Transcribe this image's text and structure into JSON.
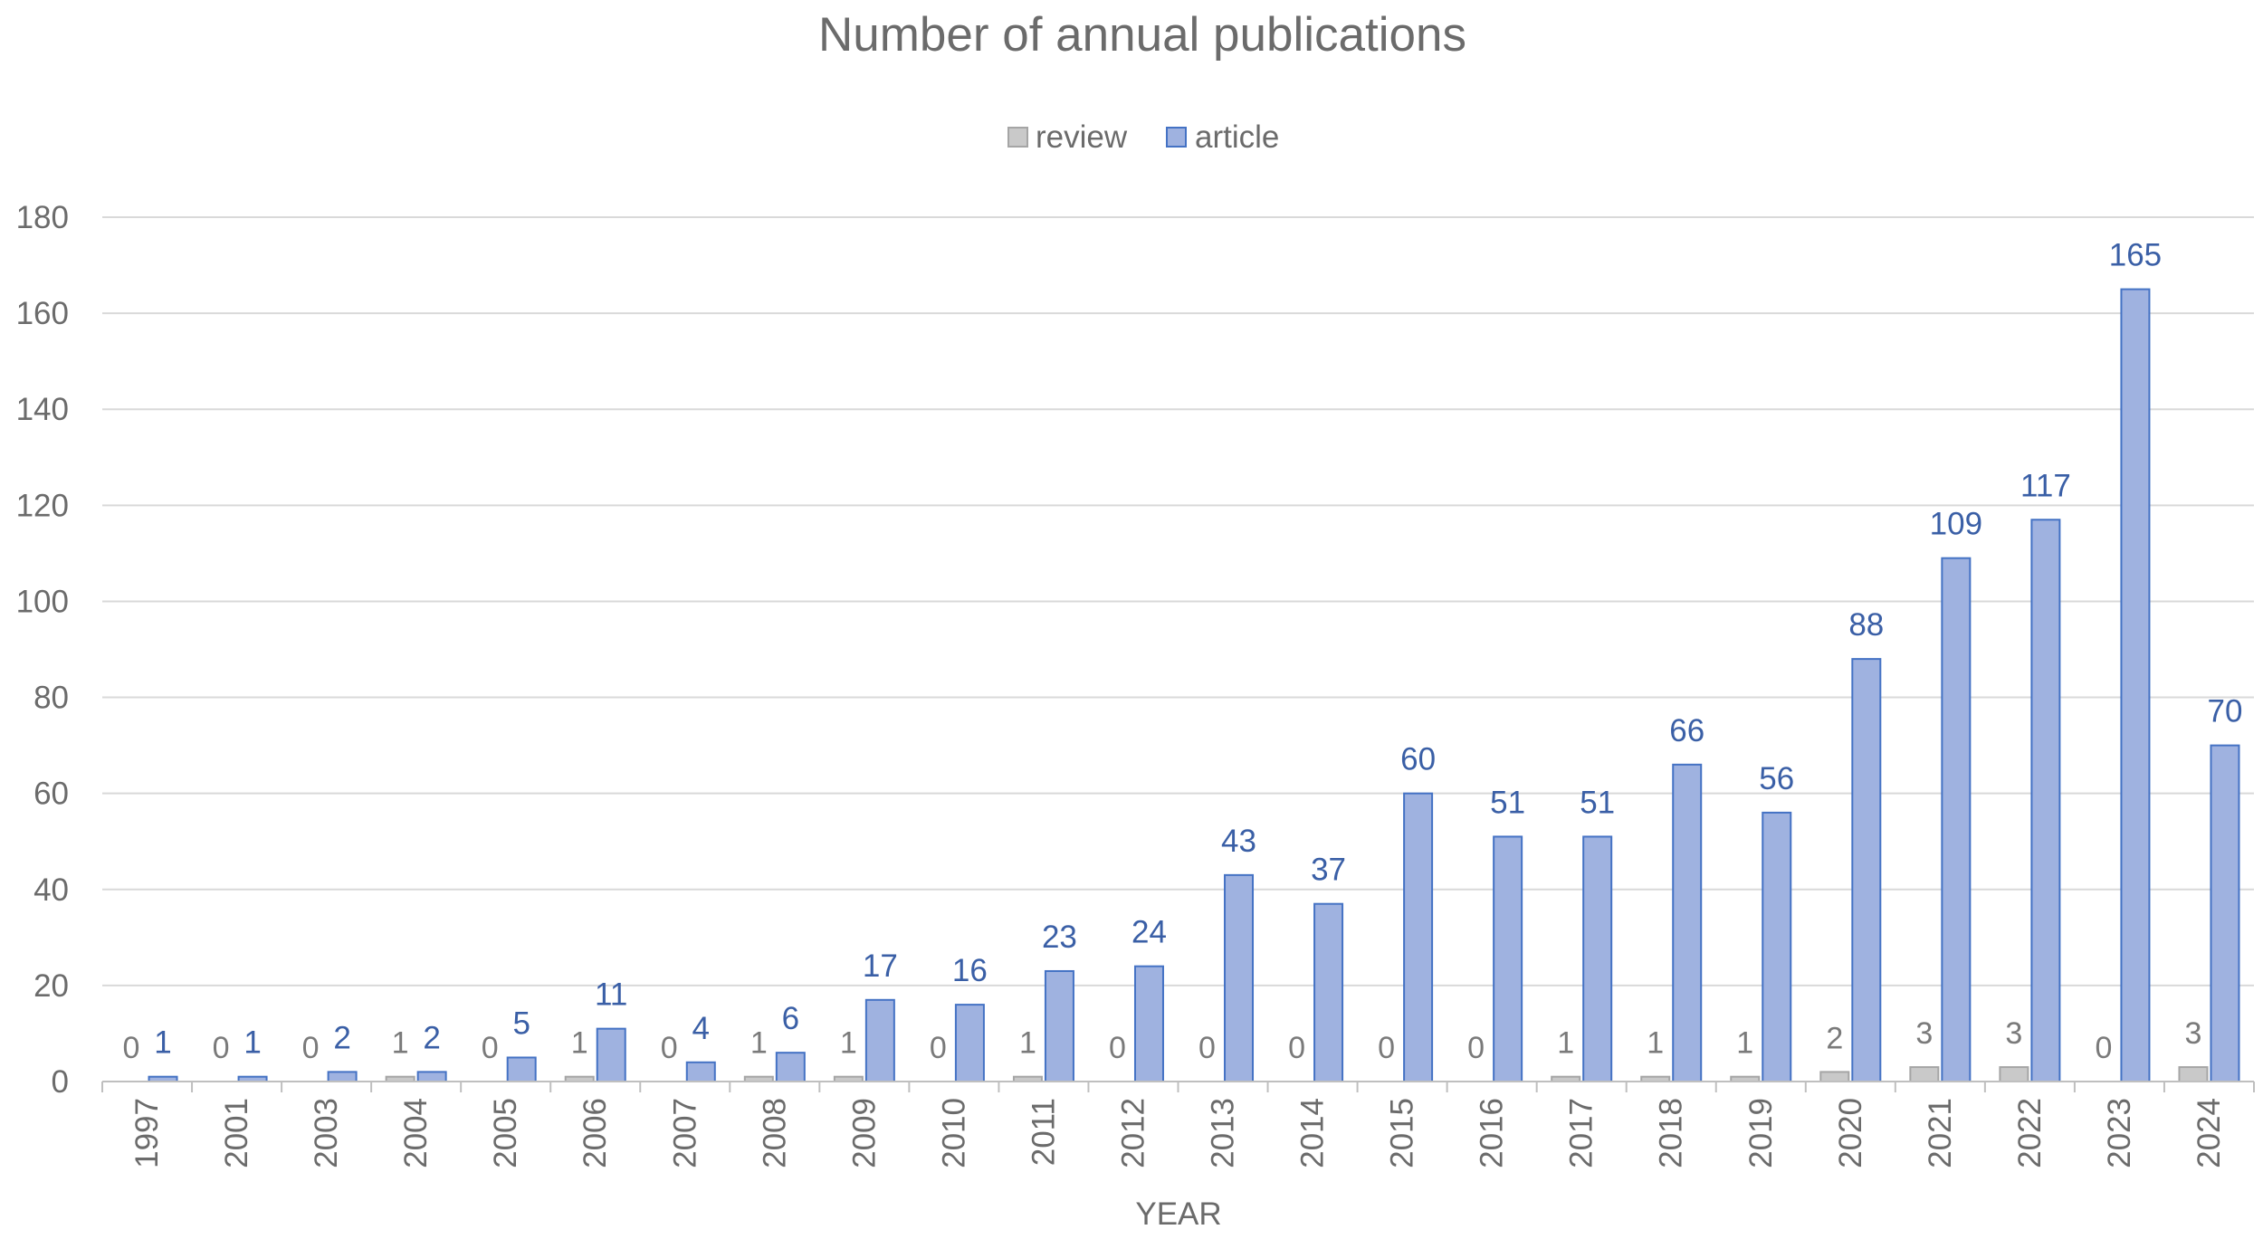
{
  "chart_data": {
    "type": "bar",
    "title": "Number of annual publications",
    "xlabel": "YEAR",
    "ylabel": "",
    "ylim": [
      0,
      180
    ],
    "yticks": [
      0,
      20,
      40,
      60,
      80,
      100,
      120,
      140,
      160,
      180
    ],
    "grid": true,
    "legend_position": "top",
    "categories": [
      "1997",
      "2001",
      "2003",
      "2004",
      "2005",
      "2006",
      "2007",
      "2008",
      "2009",
      "2010",
      "2011",
      "2012",
      "2013",
      "2014",
      "2015",
      "2016",
      "2017",
      "2018",
      "2019",
      "2020",
      "2021",
      "2022",
      "2023",
      "2024"
    ],
    "series": [
      {
        "name": "review",
        "color": "#c9c9c9",
        "stroke": "#a5a5a5",
        "label_color": "#7a7a7a",
        "values": [
          0,
          0,
          0,
          1,
          0,
          1,
          0,
          1,
          1,
          0,
          1,
          0,
          0,
          0,
          0,
          0,
          1,
          1,
          1,
          2,
          3,
          3,
          0,
          3
        ]
      },
      {
        "name": "article",
        "color": "#9fb2e0",
        "stroke": "#4472c4",
        "label_color": "#3a5fa6",
        "values": [
          1,
          1,
          2,
          2,
          5,
          11,
          4,
          6,
          17,
          16,
          23,
          24,
          43,
          37,
          60,
          51,
          51,
          66,
          56,
          88,
          109,
          117,
          165,
          70
        ]
      }
    ]
  }
}
